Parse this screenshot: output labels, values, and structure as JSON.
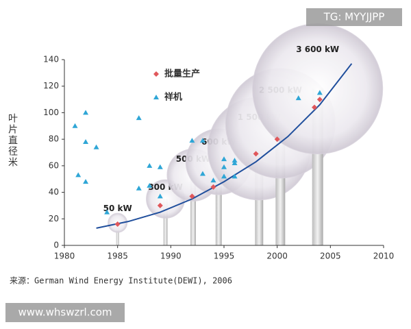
{
  "chart_data": {
    "type": "scatter",
    "y_label": "叶片直径米",
    "source": "来源：German Wind Energy Institute(DEWI), 2006",
    "xlim": [
      1980,
      2010
    ],
    "xticks": [
      1980,
      1985,
      1990,
      1995,
      2000,
      2005,
      2010
    ],
    "ylim": [
      0,
      140
    ],
    "yticks": [
      0,
      20,
      40,
      60,
      80,
      100,
      120,
      140
    ],
    "series": [
      {
        "name": "批量生产",
        "color": "#e0575b",
        "marker": "diamond",
        "x": [
          1985,
          1989,
          1992,
          1994,
          1998,
          2000,
          2003.5,
          2004
        ],
        "values": [
          16,
          30,
          37,
          44,
          69,
          80,
          104,
          110
        ]
      },
      {
        "name": "祥机",
        "color": "#2fa6d6",
        "marker": "triangle",
        "x": [
          1981,
          1981.3,
          1982,
          1982,
          1982,
          1983,
          1984,
          1987,
          1987,
          1988,
          1988,
          1989,
          1989,
          1992,
          1993,
          1993,
          1994,
          1995,
          1995,
          1995,
          1996,
          1996,
          1996,
          2002,
          2004
        ],
        "values": [
          90,
          53,
          100,
          78,
          48,
          74,
          25,
          96,
          43,
          60,
          45,
          59,
          37,
          79,
          79,
          54,
          49,
          65,
          59,
          52,
          64,
          62,
          52,
          111,
          115
        ]
      }
    ],
    "trend": {
      "color": "#1f4e9c",
      "x": [
        1983,
        1986,
        1989,
        1992,
        1995,
        1998,
        2001,
        2004,
        2007
      ],
      "values": [
        13,
        18,
        25,
        35,
        48,
        63,
        82,
        106,
        137
      ]
    },
    "turbines": [
      {
        "label": "50 kW",
        "x": 1985,
        "y": 17
      },
      {
        "label": "300 kW",
        "x": 1989.5,
        "y": 35
      },
      {
        "label": "500 kW",
        "x": 1992.1,
        "y": 53
      },
      {
        "label": "600 kW",
        "x": 1994.5,
        "y": 63
      },
      {
        "label": "1 500 kW",
        "x": 1998.3,
        "y": 73
      },
      {
        "label": "2 500 kW",
        "x": 2000.3,
        "y": 92
      },
      {
        "label": "3 600 kW",
        "x": 2003.8,
        "y": 118
      }
    ],
    "watermarks": [
      "TG: MYYJJPP",
      "www.whswzrl.com"
    ]
  }
}
